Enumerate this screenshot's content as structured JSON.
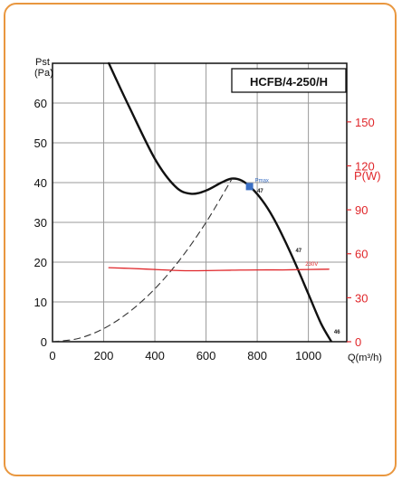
{
  "chart_data": {
    "type": "line",
    "title": "HCFB/4-250/H",
    "xlabel": "Q(m³/h)",
    "ylabel_left_symbol": "Pst",
    "ylabel_left_unit": "(Pa)",
    "ylabel_right": "P(W)",
    "xlim": [
      0,
      1150
    ],
    "ylim_left": [
      0,
      70
    ],
    "ylim_right": [
      0,
      190
    ],
    "x_ticks": [
      "0",
      "200",
      "400",
      "600",
      "800",
      "1000"
    ],
    "y_left_ticks": [
      "0",
      "10",
      "20",
      "30",
      "40",
      "50",
      "60"
    ],
    "y_right_ticks": [
      "0",
      "30",
      "60",
      "90",
      "120",
      "150"
    ],
    "grid": true,
    "series": [
      {
        "axis": "left",
        "style": "solid",
        "color": "#111111",
        "x": [
          220,
          300,
          400,
          480,
          540,
          600,
          660,
          700,
          740,
          780,
          820,
          860,
          900,
          950,
          1000,
          1050,
          1090
        ],
        "y": [
          70,
          59,
          46,
          39,
          37.2,
          38,
          40,
          41,
          40.5,
          38.5,
          35.5,
          31.5,
          26.5,
          19.5,
          12,
          4.5,
          0
        ]
      },
      {
        "axis": "left",
        "style": "dashed",
        "color": "#333333",
        "x": [
          0,
          100,
          200,
          300,
          400,
          500,
          600,
          700
        ],
        "y": [
          0,
          0.8,
          3.3,
          7.5,
          13.3,
          20.8,
          30,
          40.8
        ]
      },
      {
        "axis": "right",
        "style": "solid",
        "color": "#e0262a",
        "name": "230V",
        "x": [
          220,
          300,
          400,
          500,
          600,
          700,
          800,
          900,
          1000,
          1080
        ],
        "y": [
          50.5,
          50,
          49.3,
          48.5,
          48.5,
          48.8,
          49,
          49,
          49.3,
          49.5
        ]
      }
    ],
    "marker": {
      "label": "Pmax",
      "x": 770,
      "y": 39,
      "color": "#3a6fc4"
    },
    "annotations": [
      {
        "text": "47",
        "x": 800,
        "y": 37.5
      },
      {
        "text": "47",
        "x": 950,
        "y": 22.5
      },
      {
        "text": "46",
        "x": 1100,
        "y": 2
      }
    ]
  }
}
